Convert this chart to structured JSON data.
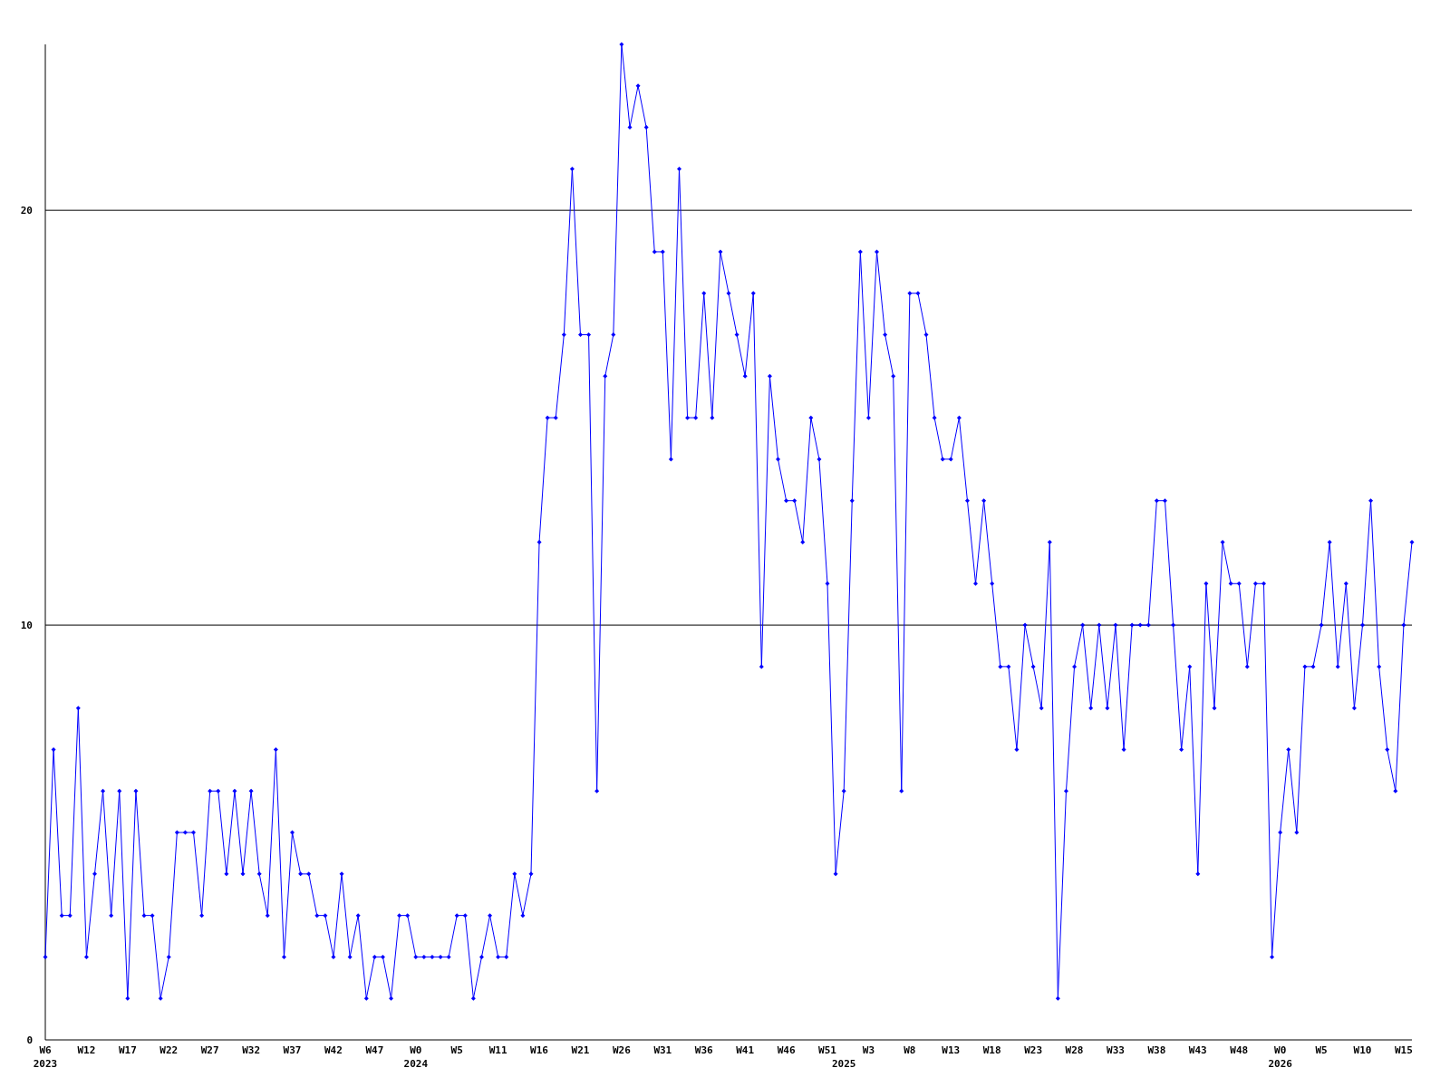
{
  "chart_data": {
    "type": "line",
    "categories": [
      "W6\n2023",
      null,
      null,
      null,
      null,
      "W12",
      null,
      null,
      null,
      null,
      "W17",
      null,
      null,
      null,
      null,
      "W22",
      null,
      null,
      null,
      null,
      "W27",
      null,
      null,
      null,
      null,
      "W32",
      null,
      null,
      null,
      null,
      "W37",
      null,
      null,
      null,
      null,
      "W42",
      null,
      null,
      null,
      null,
      "W47",
      null,
      null,
      null,
      null,
      "W0\n2024",
      null,
      null,
      null,
      null,
      "W5",
      null,
      null,
      null,
      null,
      "W11",
      null,
      null,
      null,
      null,
      "W16",
      null,
      null,
      null,
      null,
      "W21",
      null,
      null,
      null,
      null,
      "W26",
      null,
      null,
      null,
      null,
      "W31",
      null,
      null,
      null,
      null,
      "W36",
      null,
      null,
      null,
      null,
      "W41",
      null,
      null,
      null,
      null,
      "W46",
      null,
      null,
      null,
      null,
      "W51",
      null,
      "\n2025",
      null,
      null,
      "W3",
      null,
      null,
      null,
      null,
      "W8",
      null,
      null,
      null,
      null,
      "W13",
      null,
      null,
      null,
      null,
      "W18",
      null,
      null,
      null,
      null,
      "W23",
      null,
      null,
      null,
      null,
      "W28",
      null,
      null,
      null,
      null,
      "W33",
      null,
      null,
      null,
      null,
      "W38",
      null,
      null,
      null,
      null,
      "W43",
      null,
      null,
      null,
      null,
      "W48",
      null,
      null,
      null,
      null,
      "W0\n2026",
      null,
      null,
      null,
      null,
      "W5",
      null,
      null,
      null,
      null,
      "W10",
      null,
      null,
      null,
      null,
      "W15",
      null
    ],
    "series": [
      {
        "color": "#0000ff",
        "values": [
          2,
          7,
          3,
          3,
          8,
          2,
          4,
          6,
          3,
          6,
          1,
          6,
          3,
          3,
          1,
          2,
          5,
          5,
          5,
          3,
          6,
          6,
          4,
          6,
          4,
          6,
          4,
          3,
          7,
          2,
          5,
          4,
          4,
          3,
          3,
          2,
          4,
          2,
          3,
          1,
          2,
          2,
          1,
          3,
          3,
          2,
          2,
          2,
          2,
          2,
          3,
          3,
          1,
          2,
          3,
          2,
          2,
          4,
          3,
          4,
          12,
          15,
          15,
          17,
          21,
          17,
          17,
          6,
          16,
          17,
          24,
          22,
          23,
          22,
          19,
          19,
          14,
          21,
          15,
          15,
          18,
          15,
          19,
          18,
          17,
          16,
          18,
          9,
          16,
          14,
          13,
          13,
          12,
          15,
          14,
          11,
          4,
          6,
          13,
          19,
          15,
          19,
          17,
          16,
          6,
          18,
          18,
          17,
          15,
          14,
          14,
          15,
          13,
          11,
          13,
          11,
          9,
          9,
          7,
          10,
          9,
          8,
          12,
          1,
          6,
          9,
          10,
          8,
          10,
          8,
          10,
          7,
          10,
          10,
          10,
          13,
          13,
          10,
          7,
          9,
          4,
          11,
          8,
          12,
          11,
          11,
          9,
          11,
          11,
          2,
          5,
          7,
          5,
          9,
          9,
          10,
          12,
          9,
          11,
          8,
          10,
          13,
          9,
          7,
          6,
          10,
          12
        ]
      }
    ],
    "ylim": [
      0,
      24
    ],
    "yticks": [
      0,
      10,
      20
    ],
    "grid": "y",
    "marker": "diamond",
    "line_style": "solid"
  }
}
